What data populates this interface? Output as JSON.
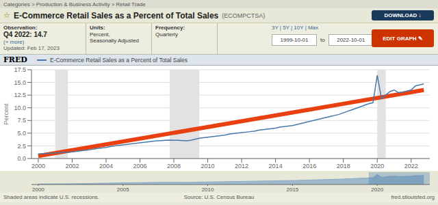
{
  "chart_data": [
    {
      "type": "line",
      "title": "E-Commerce Retail Sales as a Percent of Total Sales",
      "subtitle": "(ECOMPCTSA)",
      "y_label": "Percent",
      "annotations": [
        "Categories > Production & Business Activity > Retail Trade",
        "☆",
        "DOWNLOAD  ↓",
        "Observation:",
        "Q4 2022: 14.7",
        "(+ more)",
        "Updated: Feb 17, 2023",
        "Units:",
        "Percent,",
        "Seasonally Adjusted",
        "Frequency:",
        "Quarterly",
        "3Y | 5Y | 10Y | Max",
        "1999-10-01",
        "to",
        "2022-10-01",
        "EDIT GRAPH ✎",
        "FRED",
        "Shaded areas indicate U.S. recessions.",
        "Source: U.S. Census Bureau",
        "fred.stlouisfed.org"
      ],
      "legend": "top",
      "grid": true,
      "xlim": [
        1999.6,
        2023.1
      ],
      "xticks": [
        2000,
        2002,
        2004,
        2006,
        2008,
        2010,
        2012,
        2014,
        2016,
        2018,
        2020,
        2022
      ],
      "ylim": [
        0,
        17.5
      ],
      "yticks": [
        {
          "value": 0,
          "label": "0.0"
        },
        2.5,
        {
          "value": 5,
          "label": "5.0"
        },
        7.5,
        {
          "value": 10,
          "label": "10.0"
        },
        12.5,
        {
          "value": 15,
          "label": "15.0"
        },
        17.5
      ],
      "recessions": {
        "color": "#e2e2e2",
        "ranges": [
          [
            2001.0,
            2001.75
          ],
          [
            2007.75,
            2009.5
          ],
          [
            2020.0,
            2020.5
          ]
        ]
      },
      "series": [
        {
          "name": "E-Commerce Retail Sales as a Percent of Total Sales",
          "color": "#4878a8",
          "x": [
            2000.0,
            2000.25,
            2000.5,
            2000.75,
            2001.0,
            2001.25,
            2001.5,
            2001.75,
            2002.0,
            2002.25,
            2002.5,
            2002.75,
            2003.0,
            2003.25,
            2003.5,
            2003.75,
            2004.0,
            2004.25,
            2004.5,
            2004.75,
            2005.0,
            2005.25,
            2005.5,
            2005.75,
            2006.0,
            2006.25,
            2006.5,
            2006.75,
            2007.0,
            2007.25,
            2007.5,
            2007.75,
            2008.0,
            2008.25,
            2008.5,
            2008.75,
            2009.0,
            2009.25,
            2009.5,
            2009.75,
            2010.0,
            2010.25,
            2010.5,
            2010.75,
            2011.0,
            2011.25,
            2011.5,
            2011.75,
            2012.0,
            2012.25,
            2012.5,
            2012.75,
            2013.0,
            2013.25,
            2013.5,
            2013.75,
            2014.0,
            2014.25,
            2014.5,
            2014.75,
            2015.0,
            2015.25,
            2015.5,
            2015.75,
            2016.0,
            2016.25,
            2016.5,
            2016.75,
            2017.0,
            2017.25,
            2017.5,
            2017.75,
            2018.0,
            2018.25,
            2018.5,
            2018.75,
            2019.0,
            2019.25,
            2019.5,
            2019.75,
            2020.0,
            2020.25,
            2020.5,
            2020.75,
            2021.0,
            2021.25,
            2021.5,
            2021.75,
            2022.0,
            2022.25,
            2022.5,
            2022.75
          ],
          "values": [
            0.9,
            0.95,
            1.0,
            1.05,
            1.1,
            1.15,
            1.2,
            1.25,
            1.3,
            1.4,
            1.5,
            1.6,
            1.7,
            1.85,
            2.0,
            2.1,
            2.2,
            2.35,
            2.5,
            2.6,
            2.7,
            2.8,
            2.9,
            3.0,
            3.1,
            3.2,
            3.3,
            3.4,
            3.5,
            3.55,
            3.6,
            3.65,
            3.6,
            3.6,
            3.55,
            3.5,
            3.6,
            3.8,
            4.0,
            4.1,
            4.2,
            4.3,
            4.4,
            4.5,
            4.6,
            4.8,
            4.9,
            5.0,
            5.1,
            5.2,
            5.3,
            5.4,
            5.6,
            5.7,
            5.8,
            5.9,
            6.0,
            6.2,
            6.3,
            6.4,
            6.5,
            6.7,
            6.9,
            7.1,
            7.3,
            7.5,
            7.7,
            7.9,
            8.1,
            8.3,
            8.5,
            8.7,
            9.0,
            9.3,
            9.6,
            9.9,
            10.2,
            10.5,
            10.8,
            11.0,
            16.4,
            11.8,
            12.5,
            13.2,
            13.5,
            13.0,
            13.1,
            13.3,
            13.5,
            14.3,
            14.5,
            14.7
          ]
        },
        {
          "color": "#e84010",
          "x": [
            2000.0,
            2022.75
          ],
          "values": [
            0.5,
            13.5
          ]
        }
      ]
    },
    {
      "type": "area",
      "color": "#8aacc8",
      "xlim": [
        1999.6,
        2023.1
      ],
      "ylim": [
        0,
        20
      ],
      "xticks": [
        2000,
        2005,
        2010,
        2015,
        2020
      ],
      "highlight_range": [
        2019.5,
        2023.1
      ],
      "x": [
        2000.0,
        2000.25,
        2000.5,
        2000.75,
        2001.0,
        2001.25,
        2001.5,
        2001.75,
        2002.0,
        2002.25,
        2002.5,
        2002.75,
        2003.0,
        2003.25,
        2003.5,
        2003.75,
        2004.0,
        2004.25,
        2004.5,
        2004.75,
        2005.0,
        2005.25,
        2005.5,
        2005.75,
        2006.0,
        2006.25,
        2006.5,
        2006.75,
        2007.0,
        2007.25,
        2007.5,
        2007.75,
        2008.0,
        2008.25,
        2008.5,
        2008.75,
        2009.0,
        2009.25,
        2009.5,
        2009.75,
        2010.0,
        2010.25,
        2010.5,
        2010.75,
        2011.0,
        2011.25,
        2011.5,
        2011.75,
        2012.0,
        2012.25,
        2012.5,
        2012.75,
        2013.0,
        2013.25,
        2013.5,
        2013.75,
        2014.0,
        2014.25,
        2014.5,
        2014.75,
        2015.0,
        2015.25,
        2015.5,
        2015.75,
        2016.0,
        2016.25,
        2016.5,
        2016.75,
        2017.0,
        2017.25,
        2017.5,
        2017.75,
        2018.0,
        2018.25,
        2018.5,
        2018.75,
        2019.0,
        2019.25,
        2019.5,
        2019.75,
        2020.0,
        2020.25,
        2020.5,
        2020.75,
        2021.0,
        2021.25,
        2021.5,
        2021.75,
        2022.0,
        2022.25,
        2022.5,
        2022.75
      ],
      "values": [
        0.9,
        0.95,
        1.0,
        1.05,
        1.1,
        1.15,
        1.2,
        1.25,
        1.3,
        1.4,
        1.5,
        1.6,
        1.7,
        1.85,
        2.0,
        2.1,
        2.2,
        2.35,
        2.5,
        2.6,
        2.7,
        2.8,
        2.9,
        3.0,
        3.1,
        3.2,
        3.3,
        3.4,
        3.5,
        3.55,
        3.6,
        3.65,
        3.6,
        3.6,
        3.55,
        3.5,
        3.6,
        3.8,
        4.0,
        4.1,
        4.2,
        4.3,
        4.4,
        4.5,
        4.6,
        4.8,
        4.9,
        5.0,
        5.1,
        5.2,
        5.3,
        5.4,
        5.6,
        5.7,
        5.8,
        5.9,
        6.0,
        6.2,
        6.3,
        6.4,
        6.5,
        6.7,
        6.9,
        7.1,
        7.3,
        7.5,
        7.7,
        7.9,
        8.1,
        8.3,
        8.5,
        8.7,
        9.0,
        9.3,
        9.6,
        9.9,
        10.2,
        10.5,
        10.8,
        11.0,
        16.4,
        11.8,
        12.5,
        13.2,
        13.5,
        13.0,
        13.1,
        13.3,
        13.5,
        14.3,
        14.5,
        14.7
      ]
    }
  ]
}
